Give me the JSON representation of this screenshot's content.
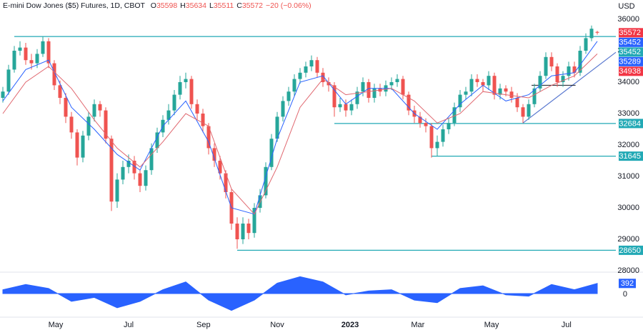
{
  "chart_data": {
    "type": "candlestick",
    "title": "E-mini Dow Jones ($5) Futures, 1D, CBOT",
    "ohlc_letters": [
      "O",
      "H",
      "L",
      "C"
    ],
    "change": "−20 (−0.06%)",
    "currency": "USD",
    "up_color": "#26a69a",
    "down_color": "#ef5350",
    "grid": false,
    "xlim": [
      -0.5,
      107.5
    ],
    "ylim": [
      28000,
      36000
    ],
    "yticks": [
      28000,
      29000,
      30000,
      31000,
      32000,
      33000,
      34000,
      35000,
      36000
    ],
    "xticks": [
      {
        "value": 9.25,
        "label": "May"
      },
      {
        "value": 22,
        "label": "Jul"
      },
      {
        "value": 35.1,
        "label": "Sep"
      },
      {
        "value": 48,
        "label": "Nov"
      },
      {
        "value": 60.75,
        "label": "2023"
      },
      {
        "value": 72.6,
        "label": "Mar"
      },
      {
        "value": 85.5,
        "label": "May"
      },
      {
        "value": 98.6,
        "label": "Jul"
      }
    ],
    "candles": [
      [
        33500,
        33850,
        33350,
        33700
      ],
      [
        33700,
        34550,
        33600,
        34400
      ],
      [
        34400,
        35150,
        34300,
        35000
      ],
      [
        35000,
        35300,
        34850,
        35100
      ],
      [
        35100,
        35250,
        34550,
        34700
      ],
      [
        34700,
        34900,
        34400,
        34600
      ],
      [
        34600,
        35050,
        34450,
        34900
      ],
      [
        34900,
        35450,
        34800,
        35300
      ],
      [
        35300,
        35400,
        34450,
        34600
      ],
      [
        34600,
        34700,
        33750,
        33900
      ],
      [
        33900,
        34050,
        33300,
        33500
      ],
      [
        33500,
        33650,
        32700,
        32900
      ],
      [
        32900,
        33050,
        32200,
        32400
      ],
      [
        32400,
        32500,
        31350,
        31600
      ],
      [
        31600,
        32450,
        31450,
        32300
      ],
      [
        32300,
        33050,
        32150,
        32900
      ],
      [
        32900,
        33450,
        32750,
        33300
      ],
      [
        33300,
        33400,
        32900,
        33100
      ],
      [
        33100,
        33200,
        32050,
        32200
      ],
      [
        32200,
        32300,
        29900,
        30200
      ],
      [
        30200,
        31100,
        30000,
        30900
      ],
      [
        30900,
        31500,
        30750,
        31300
      ],
      [
        31300,
        31700,
        31100,
        31500
      ],
      [
        31500,
        31650,
        30900,
        31100
      ],
      [
        31100,
        31200,
        30500,
        30700
      ],
      [
        30700,
        31350,
        30550,
        31200
      ],
      [
        31200,
        32050,
        31050,
        31900
      ],
      [
        31900,
        32550,
        31750,
        32400
      ],
      [
        32400,
        32950,
        32250,
        32800
      ],
      [
        32800,
        33300,
        32650,
        33100
      ],
      [
        33100,
        33750,
        32950,
        33600
      ],
      [
        33600,
        34200,
        33450,
        34000
      ],
      [
        34000,
        34300,
        33800,
        34100
      ],
      [
        34100,
        34200,
        33150,
        33300
      ],
      [
        33300,
        33450,
        32800,
        33000
      ],
      [
        33000,
        33150,
        32400,
        32600
      ],
      [
        32600,
        32700,
        31700,
        31900
      ],
      [
        31900,
        32050,
        31300,
        31500
      ],
      [
        31500,
        31650,
        30900,
        31100
      ],
      [
        31100,
        31200,
        30300,
        30500
      ],
      [
        30500,
        30600,
        29300,
        29500
      ],
      [
        29500,
        29700,
        28700,
        29000
      ],
      [
        29000,
        29700,
        28850,
        29500
      ],
      [
        29500,
        29650,
        29000,
        29200
      ],
      [
        29200,
        30150,
        29050,
        30000
      ],
      [
        30000,
        30600,
        29850,
        30400
      ],
      [
        30400,
        31450,
        30300,
        31300
      ],
      [
        31300,
        32350,
        31200,
        32200
      ],
      [
        32200,
        33050,
        32100,
        32900
      ],
      [
        32900,
        33550,
        32750,
        33400
      ],
      [
        33400,
        33850,
        33250,
        33700
      ],
      [
        33700,
        34250,
        33550,
        34100
      ],
      [
        34100,
        34450,
        33950,
        34300
      ],
      [
        34300,
        34650,
        34150,
        34500
      ],
      [
        34500,
        34850,
        34350,
        34700
      ],
      [
        34700,
        34800,
        34150,
        34300
      ],
      [
        34300,
        34450,
        33850,
        34000
      ],
      [
        34000,
        34150,
        33700,
        33900
      ],
      [
        33900,
        34000,
        32900,
        33200
      ],
      [
        33200,
        33500,
        33050,
        33300
      ],
      [
        33300,
        33450,
        32900,
        33100
      ],
      [
        33100,
        33450,
        32950,
        33300
      ],
      [
        33300,
        33850,
        33150,
        33700
      ],
      [
        33700,
        34150,
        33550,
        34000
      ],
      [
        34000,
        34100,
        33350,
        33500
      ],
      [
        33500,
        33950,
        33350,
        33800
      ],
      [
        33800,
        33950,
        33550,
        33700
      ],
      [
        33700,
        34050,
        33550,
        33900
      ],
      [
        33900,
        34150,
        33750,
        34000
      ],
      [
        34000,
        34250,
        33850,
        34100
      ],
      [
        34100,
        34200,
        33450,
        33600
      ],
      [
        33600,
        33700,
        32950,
        33100
      ],
      [
        33100,
        33250,
        32700,
        32900
      ],
      [
        32900,
        33050,
        32550,
        32700
      ],
      [
        32700,
        32850,
        32400,
        32600
      ],
      [
        32600,
        32700,
        31600,
        31900
      ],
      [
        31900,
        32300,
        31650,
        32100
      ],
      [
        32100,
        32650,
        31950,
        32500
      ],
      [
        32500,
        32850,
        32350,
        32700
      ],
      [
        32700,
        33350,
        32600,
        33200
      ],
      [
        33200,
        33750,
        33050,
        33600
      ],
      [
        33600,
        33850,
        33450,
        33700
      ],
      [
        33700,
        34250,
        33550,
        34100
      ],
      [
        34100,
        34250,
        33850,
        34000
      ],
      [
        34000,
        34100,
        33700,
        33900
      ],
      [
        33900,
        34350,
        33750,
        34200
      ],
      [
        34200,
        34300,
        33450,
        33600
      ],
      [
        33600,
        33950,
        33450,
        33800
      ],
      [
        33800,
        33900,
        33550,
        33700
      ],
      [
        33700,
        33850,
        33350,
        33500
      ],
      [
        33500,
        33650,
        33050,
        33200
      ],
      [
        33200,
        33300,
        32700,
        32900
      ],
      [
        32900,
        33450,
        32800,
        33300
      ],
      [
        33300,
        33950,
        33200,
        33800
      ],
      [
        33800,
        34350,
        33700,
        34200
      ],
      [
        34200,
        34950,
        34100,
        34800
      ],
      [
        34800,
        34950,
        34350,
        34500
      ],
      [
        34500,
        34600,
        33850,
        34000
      ],
      [
        34000,
        34350,
        33850,
        34200
      ],
      [
        34200,
        34650,
        34050,
        34500
      ],
      [
        34500,
        34650,
        34150,
        34300
      ],
      [
        34300,
        35150,
        34200,
        35000
      ],
      [
        35000,
        35550,
        34900,
        35400
      ],
      [
        35400,
        35800,
        35300,
        35700
      ],
      [
        35598,
        35634,
        35511,
        35572
      ]
    ],
    "moving_averages": [
      {
        "color": "#2962ff",
        "x": [
          0,
          4,
          8,
          12,
          16,
          20,
          24,
          28,
          32,
          36,
          40,
          44,
          48,
          52,
          56,
          60,
          64,
          68,
          72,
          76,
          80,
          84,
          88,
          92,
          96,
          100,
          104
        ],
        "values": [
          33400,
          34400,
          34700,
          33200,
          32500,
          31700,
          31200,
          32600,
          33400,
          32100,
          30000,
          29800,
          32200,
          34000,
          34200,
          33300,
          33800,
          33800,
          33000,
          32500,
          33300,
          33900,
          33400,
          33600,
          34200,
          34300,
          35300
        ]
      },
      {
        "color": "#e0676f",
        "x": [
          0,
          4,
          8,
          12,
          16,
          20,
          24,
          28,
          32,
          36,
          40,
          44,
          48,
          52,
          56,
          60,
          64,
          68,
          72,
          76,
          80,
          84,
          88,
          92,
          96,
          100,
          104
        ],
        "values": [
          33000,
          34000,
          34500,
          33800,
          32800,
          31900,
          31300,
          32100,
          33000,
          32600,
          30600,
          29800,
          31300,
          33200,
          34100,
          33600,
          33700,
          33800,
          33400,
          32700,
          33000,
          33700,
          33600,
          33500,
          33900,
          34200,
          34900
        ]
      }
    ],
    "levels": [
      {
        "value": 35452,
        "from": 2
      },
      {
        "value": 32684,
        "from": 58
      },
      {
        "value": 31645,
        "from": 75
      },
      {
        "value": 28650,
        "from": 41
      }
    ],
    "level_color": "#22a9b5",
    "trendline": {
      "color": "#5877cf",
      "x": [
        91,
        107.5
      ],
      "values": [
        32700,
        34950
      ]
    },
    "range_line": {
      "color": "#131722",
      "x": [
        92.5,
        100.2
      ],
      "value": 33900
    },
    "axis_labels": [
      {
        "value": 35572,
        "color": "#f23645"
      },
      {
        "value": 35452,
        "color": "#2962ff"
      },
      {
        "value": 35289,
        "color": "#2962ff"
      },
      {
        "value": 34938,
        "color": "#f23645"
      }
    ],
    "indicator": {
      "color": "#2962ff",
      "ylim": [
        -800,
        800
      ],
      "yticks": [
        0
      ],
      "x": [
        0,
        4,
        8,
        12,
        16,
        20,
        24,
        28,
        32,
        36,
        40,
        44,
        48,
        52,
        56,
        60,
        64,
        68,
        72,
        76,
        80,
        84,
        88,
        92,
        96,
        100,
        104
      ],
      "values": [
        150,
        350,
        200,
        -300,
        -150,
        -550,
        -300,
        150,
        450,
        -250,
        -650,
        -250,
        400,
        650,
        450,
        -50,
        100,
        150,
        -250,
        -350,
        200,
        300,
        -50,
        -100,
        350,
        150,
        392
      ]
    }
  }
}
